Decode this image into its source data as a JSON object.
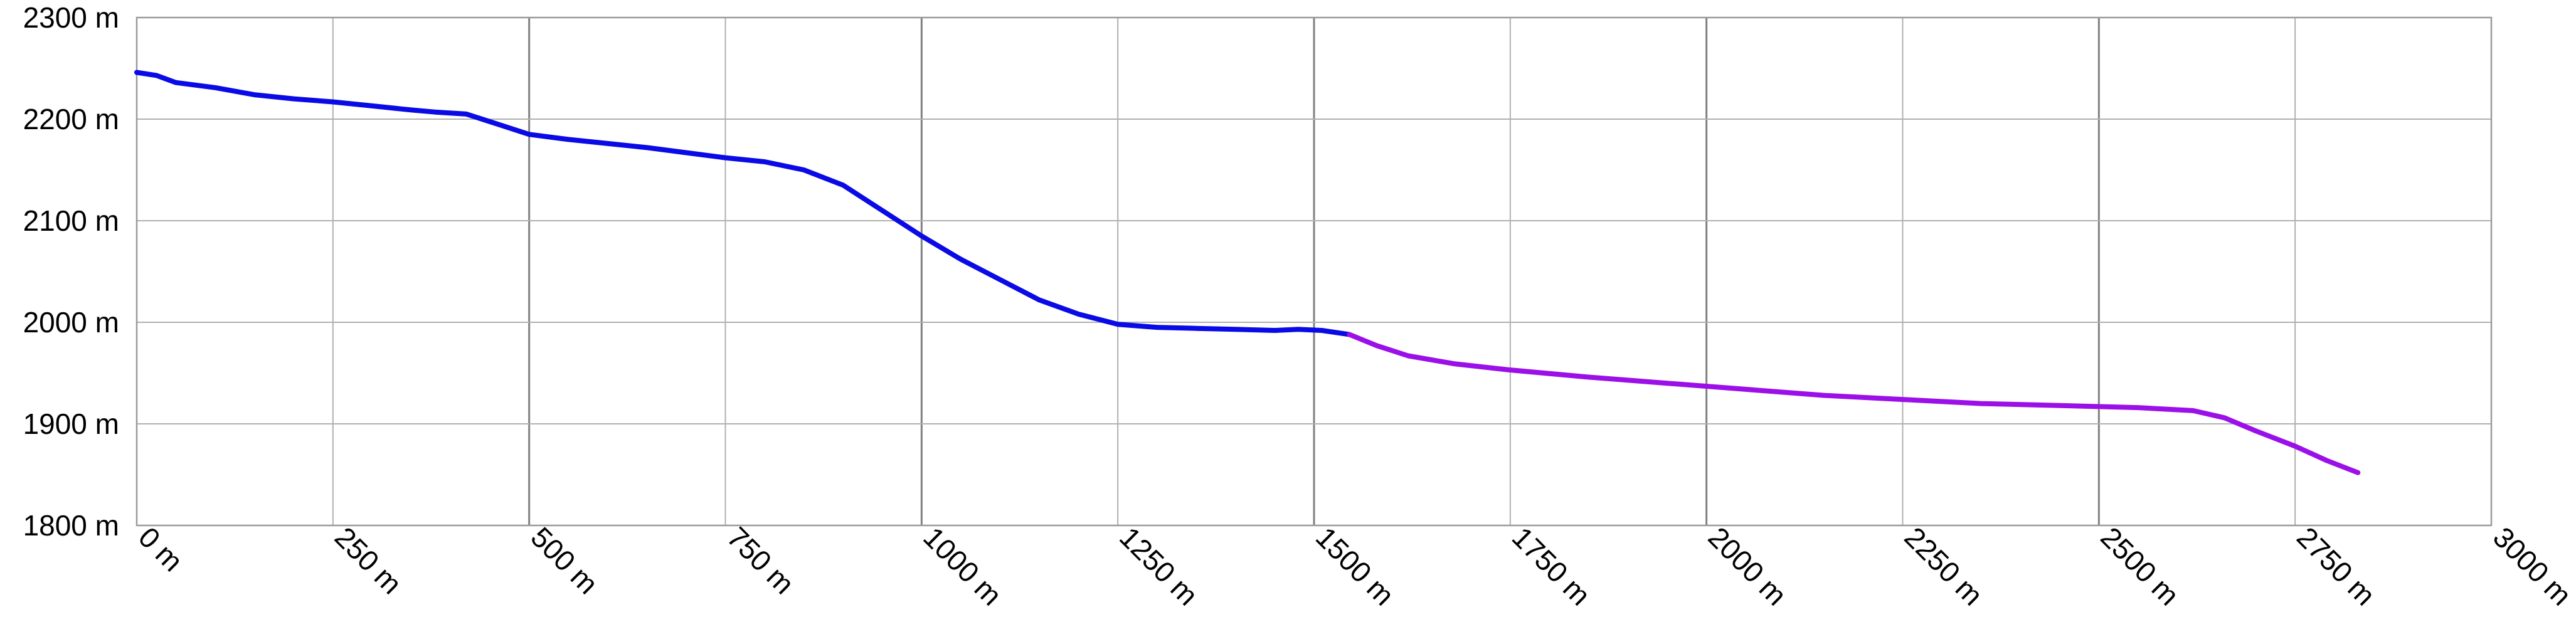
{
  "chart_data": {
    "type": "line",
    "title": "",
    "xlabel": "",
    "ylabel": "",
    "xlim": [
      0,
      3000
    ],
    "ylim": [
      1800,
      2300
    ],
    "x_ticks": [
      0,
      250,
      500,
      750,
      1000,
      1250,
      1500,
      1750,
      2000,
      2250,
      2500,
      2750,
      3000
    ],
    "y_ticks": [
      1800,
      1900,
      2000,
      2100,
      2200,
      2300
    ],
    "x_tick_labels": [
      "0 m",
      "250 m",
      "500 m",
      "750 m",
      "1000 m",
      "1250 m",
      "1500 m",
      "1750 m",
      "2000 m",
      "2250 m",
      "2500 m",
      "2750 m",
      "3000 m"
    ],
    "y_tick_labels": [
      "1800 m",
      "1900 m",
      "2000 m",
      "2100 m",
      "2200 m",
      "2300 m"
    ],
    "grid": true,
    "legend": "none",
    "series": [
      {
        "color": "#0a0ae6",
        "x": [
          0,
          25,
          50,
          100,
          150,
          200,
          250,
          300,
          350,
          380,
          420,
          460,
          500,
          550,
          600,
          650,
          700,
          750,
          800,
          850,
          900,
          950,
          1000,
          1050,
          1100,
          1150,
          1200,
          1250,
          1300,
          1350,
          1400,
          1450,
          1480,
          1510,
          1545
        ],
        "y": [
          2246,
          2243,
          2236,
          2231,
          2224,
          2220,
          2217,
          2213,
          2209,
          2207,
          2205,
          2195,
          2185,
          2180,
          2176,
          2172,
          2167,
          2162,
          2158,
          2150,
          2135,
          2110,
          2085,
          2062,
          2042,
          2022,
          2008,
          1998,
          1995,
          1994,
          1993,
          1992,
          1993,
          1992,
          1988
        ]
      },
      {
        "color": "#9b10e8",
        "x": [
          1545,
          1580,
          1620,
          1680,
          1750,
          1850,
          1950,
          2050,
          2150,
          2250,
          2350,
          2450,
          2550,
          2620,
          2660,
          2700,
          2750,
          2790,
          2830
        ],
        "y": [
          1988,
          1977,
          1967,
          1959,
          1953,
          1946,
          1940,
          1934,
          1928,
          1924,
          1920,
          1918,
          1916,
          1913,
          1906,
          1893,
          1878,
          1864,
          1852
        ]
      }
    ]
  }
}
